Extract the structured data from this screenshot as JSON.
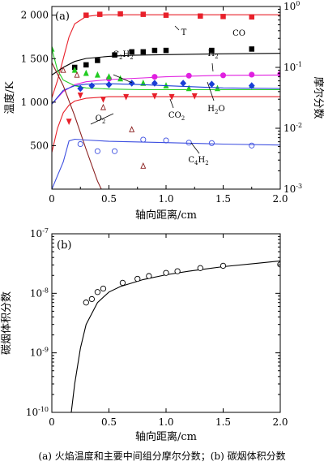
{
  "figure": {
    "caption": "(a) 火焰温度和主要中间组分摩尔分数；(b) 碳烟体积分数"
  },
  "chart_data": [
    {
      "type": "line",
      "panel_label": "(a)",
      "xlabel": "轴向距离/cm",
      "ylabel_left": "温度/K",
      "ylabel_right": "摩尔分数",
      "xlim": [
        0,
        2.0
      ],
      "ylim_left": [
        0,
        2100
      ],
      "ylim_right": [
        0.001,
        1
      ],
      "right_scale": "log",
      "x_ticks": [
        0,
        0.5,
        1.0,
        1.5,
        2.0
      ],
      "x_tick_labels": [
        "0",
        "0.5",
        "1.0",
        "1.5",
        "2.0"
      ],
      "y_ticks_left": [
        500,
        1000,
        1500,
        2000
      ],
      "y_tick_labels_left": [
        "500",
        "1 000",
        "1 500",
        "2 000"
      ],
      "y_ticks_right": [
        0.001,
        0.01,
        0.1,
        1
      ],
      "y_tick_labels_right": [
        "10^-3",
        "10^-2",
        "10^-1",
        "10^0"
      ],
      "annotations": [
        "T",
        "CO",
        "H2",
        "C2H2",
        "H2O",
        "CO2",
        "O2",
        "C4H2"
      ],
      "series": [
        {
          "axis": "left",
          "color": "#e8202a",
          "marker": "square-filled",
          "x": [
            0.3,
            0.42,
            0.6,
            0.8,
            1.0,
            1.3,
            1.5,
            1.75
          ],
          "y": [
            2000,
            2010,
            2015,
            2010,
            2000,
            1990,
            1985,
            1980
          ],
          "curve_x": [
            0,
            0.05,
            0.1,
            0.15,
            0.2,
            0.3,
            0.4,
            0.5,
            0.6,
            0.8,
            1.0,
            1.5,
            2.0
          ],
          "curve_y": [
            1050,
            1250,
            1500,
            1750,
            1900,
            1985,
            2000,
            2005,
            2005,
            2005,
            2005,
            2005,
            2005
          ]
        },
        {
          "axis": "right",
          "color": "#000000",
          "marker": "square-filled",
          "x": [
            0.2,
            0.3,
            0.4,
            0.55,
            0.7,
            0.8,
            0.9,
            1.0,
            1.4,
            1.75
          ],
          "y": [
            0.1,
            0.11,
            0.13,
            0.16,
            0.18,
            0.18,
            0.19,
            0.19,
            0.19,
            0.2
          ],
          "curve_x": [
            0,
            0.1,
            0.2,
            0.3,
            0.5,
            0.7,
            1.0,
            1.5,
            2.0
          ],
          "curve_y": [
            0.075,
            0.1,
            0.125,
            0.14,
            0.152,
            0.158,
            0.162,
            0.167,
            0.17
          ]
        },
        {
          "axis": "right",
          "color": "#e020e0",
          "marker": "circle-filled",
          "x": [
            0.5,
            0.9,
            1.2,
            1.5,
            1.75,
            2.0
          ],
          "y": [
            0.065,
            0.07,
            0.073,
            0.074,
            0.076,
            0.078
          ],
          "curve_x": [
            0,
            0.1,
            0.2,
            0.3,
            0.5,
            0.8,
            1.0,
            1.5,
            2.0
          ],
          "curve_y": [
            0.025,
            0.04,
            0.052,
            0.058,
            0.063,
            0.067,
            0.07,
            0.074,
            0.075
          ]
        },
        {
          "axis": "right",
          "color": "#22cc22",
          "marker": "triangle-filled",
          "x": [
            0,
            0.2,
            0.3,
            0.4,
            0.5,
            0.6,
            0.8,
            1.0,
            1.2,
            1.45,
            1.75
          ],
          "y": [
            0.2,
            0.09,
            0.08,
            0.075,
            0.07,
            0.065,
            0.055,
            0.05,
            0.045,
            0.045,
            0.05
          ],
          "curve_x": [
            0,
            0.05,
            0.1,
            0.2,
            0.3,
            0.5,
            0.8,
            1.0,
            1.5,
            2.0
          ],
          "curve_y": [
            0.2,
            0.09,
            0.062,
            0.05,
            0.046,
            0.044,
            0.043,
            0.043,
            0.043,
            0.043
          ]
        },
        {
          "axis": "right",
          "color": "#1a3fd6",
          "marker": "diamond-filled",
          "x": [
            0.25,
            0.35,
            0.5,
            0.7,
            0.9,
            1.15,
            1.4,
            1.75
          ],
          "y": [
            0.045,
            0.05,
            0.052,
            0.055,
            0.055,
            0.055,
            0.053,
            0.05
          ],
          "curve_x": [
            0,
            0.1,
            0.2,
            0.3,
            0.5,
            0.8,
            1.0,
            1.5,
            2.0
          ],
          "curve_y": [
            0.025,
            0.042,
            0.05,
            0.053,
            0.054,
            0.052,
            0.05,
            0.046,
            0.045
          ]
        },
        {
          "axis": "right",
          "color": "#e8202a",
          "marker": "triangle-down-filled",
          "x": [
            0.15,
            0.25,
            0.45,
            0.65,
            0.9,
            1.05,
            1.25
          ],
          "y": [
            0.013,
            0.035,
            0.03,
            0.033,
            0.034,
            0.033,
            0.034
          ],
          "curve_x": [
            0,
            0.05,
            0.1,
            0.15,
            0.2,
            0.3,
            0.5,
            0.8,
            1.0,
            1.5,
            2.0
          ],
          "curve_y": [
            0.004,
            0.01,
            0.018,
            0.024,
            0.028,
            0.031,
            0.033,
            0.033,
            0.033,
            0.033,
            0.033
          ]
        },
        {
          "axis": "right",
          "color": "#8b2020",
          "marker": "triangle-open",
          "x": [
            0.1,
            0.22,
            0.45,
            0.7,
            0.8
          ],
          "y": [
            0.09,
            0.075,
            0.022,
            0.0095,
            0.0024
          ],
          "curve_x": [
            0,
            0.1,
            0.2,
            0.3,
            0.4,
            0.5
          ],
          "curve_y": [
            0.12,
            0.05,
            0.016,
            0.0045,
            0.00135,
            0.00055
          ]
        },
        {
          "axis": "right",
          "color": "#3d4fe0",
          "marker": "circle-open",
          "x": [
            0.25,
            0.4,
            0.55,
            0.8,
            1.0,
            1.2,
            1.4,
            1.75
          ],
          "y": [
            0.0055,
            0.0042,
            0.0042,
            0.0065,
            0.0063,
            0.0058,
            0.0057,
            0.0052
          ],
          "curve_x": [
            0,
            0.1,
            0.15,
            0.2,
            0.3,
            0.5,
            1.0,
            1.5,
            2.0
          ],
          "curve_y": [
            0.001,
            0.0028,
            0.0062,
            0.0066,
            0.0064,
            0.0061,
            0.0058,
            0.0055,
            0.0053
          ]
        }
      ]
    },
    {
      "type": "line",
      "panel_label": "(b)",
      "xlabel": "轴向距离/cm",
      "ylabel": "碳烟体积分数",
      "xlim": [
        0,
        2.0
      ],
      "ylim": [
        1e-10,
        1e-07
      ],
      "y_scale": "log",
      "x_ticks": [
        0,
        0.5,
        1.0,
        1.5,
        2.0
      ],
      "x_tick_labels": [
        "0",
        "0.5",
        "1.0",
        "1.5",
        "2.0"
      ],
      "y_ticks": [
        1e-10,
        1e-09,
        1e-08,
        1e-07
      ],
      "y_tick_labels": [
        "10^-10",
        "10^-9",
        "10^-8",
        "10^-7"
      ],
      "series": [
        {
          "marker": "circle-open",
          "color": "#000000",
          "x": [
            0.3,
            0.35,
            0.4,
            0.45,
            0.62,
            0.75,
            0.85,
            1.0,
            1.1,
            1.3,
            1.5,
            2.0
          ],
          "y": [
            7e-09,
            8e-09,
            1.05e-08,
            1.2e-08,
            1.5e-08,
            1.75e-08,
            1.95e-08,
            2.2e-08,
            2.35e-08,
            2.65e-08,
            2.9e-08,
            3.05e-08
          ],
          "curve_x": [
            0.17,
            0.2,
            0.25,
            0.3,
            0.4,
            0.5,
            0.6,
            0.8,
            1.0,
            1.2,
            1.5,
            1.8,
            2.0
          ],
          "curve_y": [
            1e-10,
            3e-10,
            1.2e-09,
            3e-09,
            7e-09,
            1.05e-08,
            1.3e-08,
            1.7e-08,
            2.05e-08,
            2.35e-08,
            2.8e-08,
            3.2e-08,
            3.5e-08
          ]
        }
      ]
    }
  ]
}
